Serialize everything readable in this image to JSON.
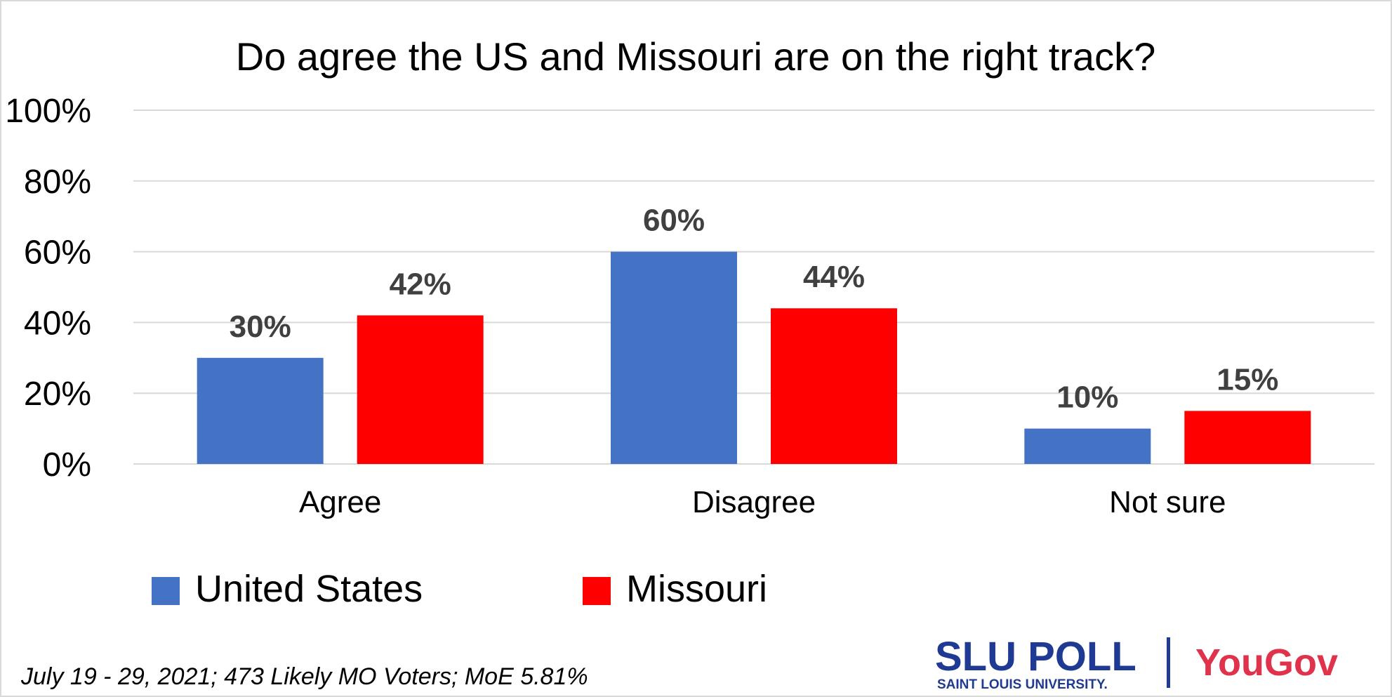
{
  "chart_data": {
    "type": "bar",
    "title": "Do agree the US and Missouri are on the right track?",
    "categories": [
      "Agree",
      "Disagree",
      "Not sure"
    ],
    "series": [
      {
        "name": "United States",
        "color": "#4472c4",
        "values": [
          30,
          60,
          10
        ],
        "labels": [
          "30%",
          "60%",
          "10%"
        ]
      },
      {
        "name": "Missouri",
        "color": "#ff0000",
        "values": [
          42,
          44,
          15
        ],
        "labels": [
          "42%",
          "44%",
          "15%"
        ]
      }
    ],
    "ylim": [
      0,
      100
    ],
    "yticks": [
      0,
      20,
      40,
      60,
      80,
      100
    ],
    "ytick_labels": [
      "0%",
      "20%",
      "40%",
      "60%",
      "80%",
      "100%"
    ],
    "xlabel": "",
    "ylabel": "",
    "grid": true,
    "legend_position": "bottom-left"
  },
  "footnote": "July 19 - 29, 2021; 473 Likely MO Voters; MoE 5.81%",
  "logos": {
    "slu_main": "SLU POLL",
    "slu_sub": "SAINT LOUIS UNIVERSITY.",
    "yougov": "YouGov",
    "slu_color": "#1f3a93",
    "yougov_color": "#e0324b"
  },
  "colors": {
    "grid": "#d9d9d9",
    "text": "#000000",
    "data_label": "#404040"
  }
}
